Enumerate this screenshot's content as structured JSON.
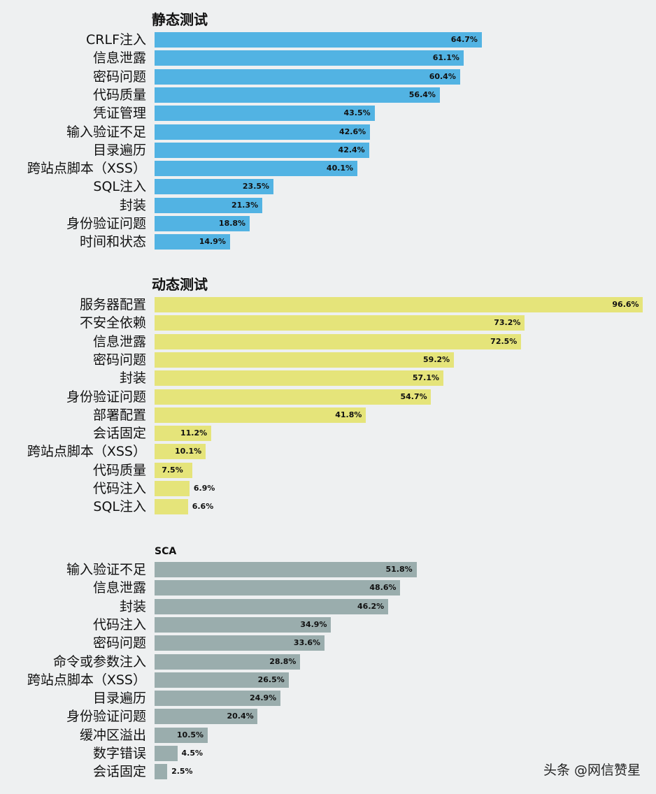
{
  "chart_data": [
    {
      "type": "bar",
      "orientation": "horizontal",
      "title": "静态测试",
      "color": "#52b3e3",
      "categories": [
        "CRLF注入",
        "信息泄露",
        "密码问题",
        "代码质量",
        "凭证管理",
        "输入验证不足",
        "目录遍历",
        "跨站点脚本（XSS）",
        "SQL注入",
        "封装",
        "身份验证问题",
        "时间和状态"
      ],
      "values": [
        64.7,
        61.1,
        60.4,
        56.4,
        43.5,
        42.6,
        42.4,
        40.1,
        23.5,
        21.3,
        18.8,
        14.9
      ],
      "value_labels": [
        "64.7%",
        "61.1%",
        "60.4%",
        "56.4%",
        "43.5%",
        "42.6%",
        "42.4%",
        "40.1%",
        "23.5%",
        "21.3%",
        "18.8%",
        "14.9%"
      ]
    },
    {
      "type": "bar",
      "orientation": "horizontal",
      "title": "动态测试",
      "color": "#e5e47a",
      "categories": [
        "服务器配置",
        "不安全依赖",
        "信息泄露",
        "密码问题",
        "封装",
        "身份验证问题",
        "部署配置",
        "会话固定",
        "跨站点脚本（XSS）",
        "代码质量",
        "代码注入",
        "SQL注入"
      ],
      "values": [
        96.6,
        73.2,
        72.5,
        59.2,
        57.1,
        54.7,
        41.8,
        11.2,
        10.1,
        7.5,
        6.9,
        6.6
      ],
      "value_labels": [
        "96.6%",
        "73.2%",
        "72.5%",
        "59.2%",
        "57.1%",
        "54.7%",
        "41.8%",
        "11.2%",
        "10.1%",
        "7.5%",
        "6.9%",
        "6.6%"
      ]
    },
    {
      "type": "bar",
      "orientation": "horizontal",
      "title": "SCA",
      "color": "#9aadad",
      "categories": [
        "输入验证不足",
        "信息泄露",
        "封装",
        "代码注入",
        "密码问题",
        "命令或参数注入",
        "跨站点脚本（XSS）",
        "目录遍历",
        "身份验证问题",
        "缓冲区溢出",
        "数字错误",
        "会话固定"
      ],
      "values": [
        51.8,
        48.6,
        46.2,
        34.9,
        33.6,
        28.8,
        26.5,
        24.9,
        20.4,
        10.5,
        4.5,
        2.5
      ],
      "value_labels": [
        "51.8%",
        "48.6%",
        "46.2%",
        "34.9%",
        "33.6%",
        "28.8%",
        "26.5%",
        "24.9%",
        "20.4%",
        "10.5%",
        "4.5%",
        "2.5%"
      ]
    }
  ],
  "watermark": "头条 @网信赞星"
}
